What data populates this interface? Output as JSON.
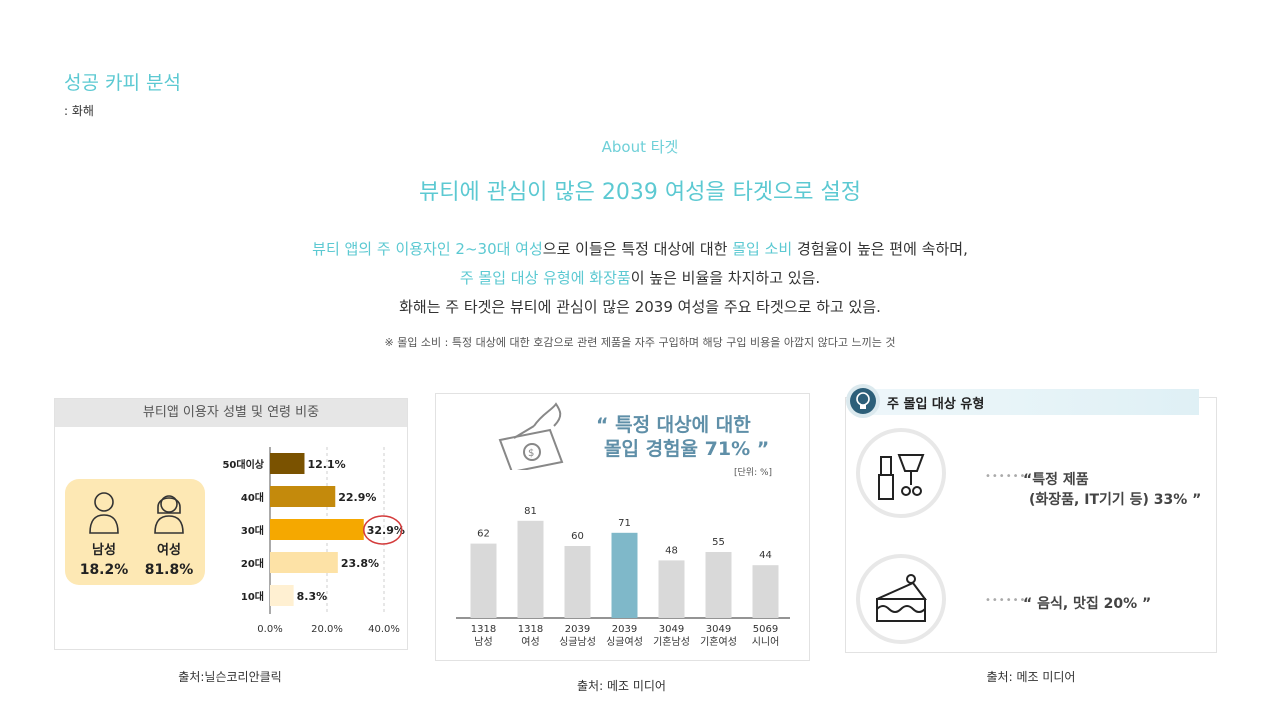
{
  "header": {
    "title": "성공 카피 분석",
    "subtitle": ": 화해"
  },
  "about": {
    "label": "About 타겟",
    "headline": "뷰티에 관심이 많은 2039 여성을 타겟으로 설정",
    "line1": {
      "h1": "뷰티 앱의 주 이용자인 2~30대 여성",
      "t1": "으로  이들은 특정 대상에 대한 ",
      "h2": "몰입 소비",
      "t2": " 경험율이 높은 편에 속하며,"
    },
    "line2": {
      "h1": "주 몰입 대상 유형에 화장품",
      "t1": "이 높은 비율을 차지하고 있음."
    },
    "line3": "화해는 주 타겟은 뷰티에 관심이 많은 2039 여성을 주요 타겟으로 하고 있음.",
    "note": "※ 몰입 소비 : 특정 대상에 대한 호감으로 관련 제품을 자주 구입하며 해당 구입 비용을 아깝지 않다고 느끼는 것"
  },
  "card1": {
    "title": "뷰티앱 이용자 성별 및 연령 비중",
    "gender": [
      {
        "label": "남성",
        "value": "18.2%"
      },
      {
        "label": "여성",
        "value": "81.8%"
      }
    ],
    "caption": "출처:닐슨코리안클릭"
  },
  "card2": {
    "quote_line1": "“ 특정 대상에 대한",
    "quote_line2": "몰입 경험율 71% ”",
    "unit": "[단위: %]",
    "caption": "출처: 메조 미디어"
  },
  "card3": {
    "title": "주 몰입 대상 유형",
    "item1_line1": "“특정 제품",
    "item1_line2": "(화장품, IT기기 등) 33% ”",
    "item2": "“ 음식, 맛집 20% ”",
    "dots": "••••••",
    "caption": "출처: 메조 미디어"
  },
  "chart_data": [
    {
      "type": "bar",
      "orientation": "horizontal",
      "categories": [
        "50대이상",
        "40대",
        "30대",
        "20대",
        "10대"
      ],
      "values": [
        12.1,
        22.9,
        32.9,
        23.8,
        8.3
      ],
      "value_labels": [
        "12.1%",
        "22.9%",
        "32.9%",
        "23.8%",
        "8.3%"
      ],
      "colors": [
        "#7a5200",
        "#c48a0c",
        "#f5a800",
        "#fde2a6",
        "#fff0d2"
      ],
      "xlim": [
        0,
        40
      ],
      "xticks": [
        "0.0%",
        "20.0%",
        "40.0%"
      ],
      "highlight": "30대"
    },
    {
      "type": "bar",
      "categories": [
        [
          "1318",
          "남성"
        ],
        [
          "1318",
          "여성"
        ],
        [
          "2039",
          "싱글남성"
        ],
        [
          "2039",
          "싱글여성"
        ],
        [
          "3049",
          "기혼남성"
        ],
        [
          "3049",
          "기혼여성"
        ],
        [
          "5069",
          "시니어"
        ]
      ],
      "values": [
        62,
        81,
        60,
        71,
        48,
        55,
        44
      ],
      "highlight_index": 3,
      "ylim": [
        0,
        100
      ],
      "colors": {
        "default": "#d9d9d9",
        "highlight": "#7fb8c9"
      }
    }
  ]
}
